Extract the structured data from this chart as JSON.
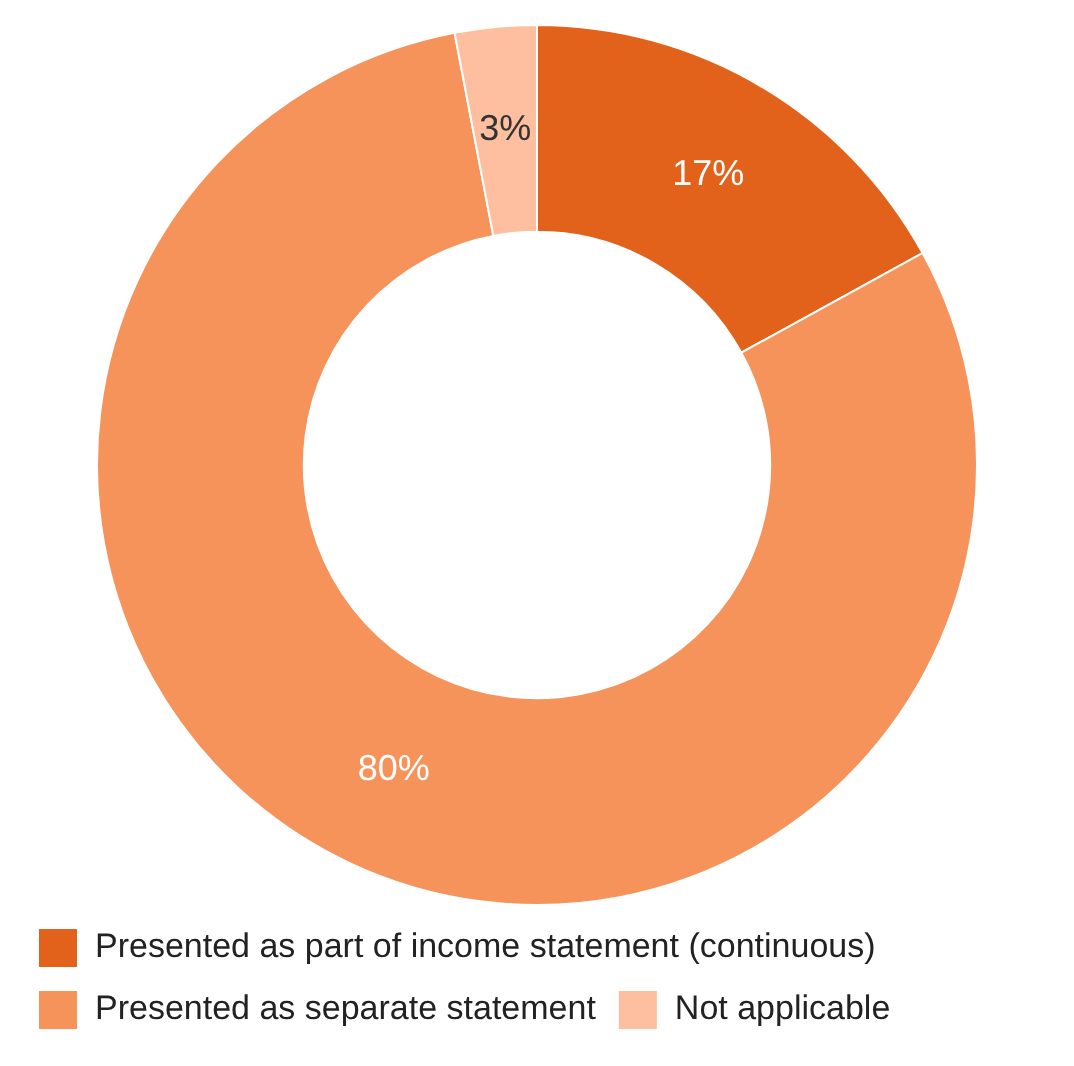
{
  "chart_data": {
    "type": "donut",
    "categories": [
      "Presented as part of income statement (continuous)",
      "Presented as separate statement",
      "Not applicable"
    ],
    "values": [
      17,
      80,
      3
    ],
    "colors": [
      "#e2621b",
      "#f5935b",
      "#fdbf9f"
    ],
    "value_labels": [
      "17%",
      "80%",
      "3%"
    ],
    "legend": "bottom"
  }
}
